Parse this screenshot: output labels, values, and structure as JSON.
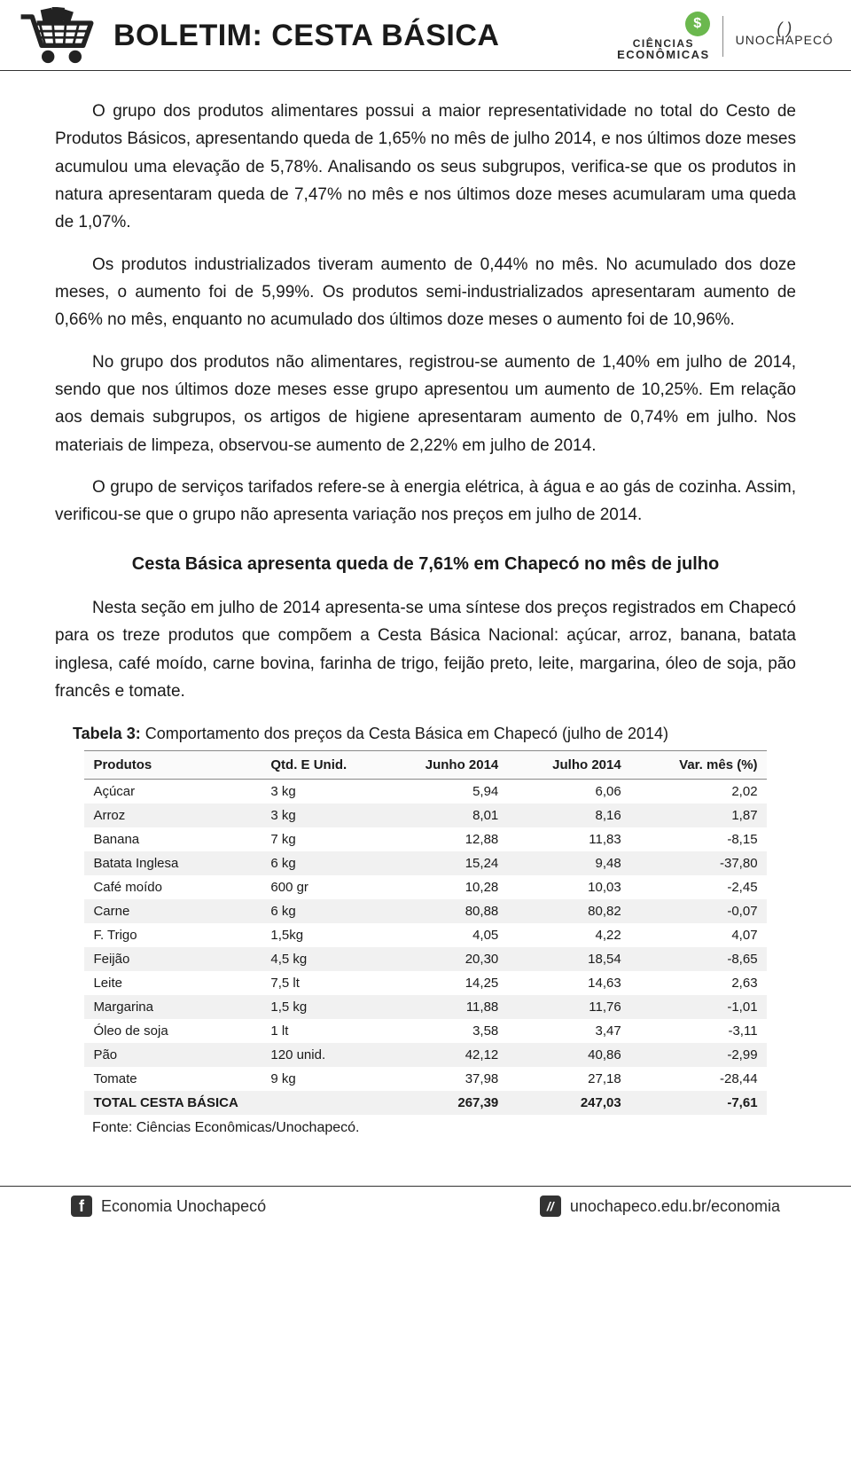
{
  "header": {
    "title": "BOLETIM: CESTA BÁSICA",
    "ciencias_line1": "CIÊNCIAS",
    "ciencias_line2": "ECONÔMICAS",
    "uno_symbol": "( )",
    "uno_text": "UNOCHAPECÓ",
    "coin_symbol": "$"
  },
  "body": {
    "p1": "O grupo dos produtos alimentares possui a maior representatividade no total do Cesto de Produtos Básicos, apresentando queda de 1,65% no mês de julho 2014, e nos últimos doze meses acumulou uma elevação de 5,78%. Analisando os seus subgrupos, verifica-se que os produtos in natura apresentaram queda de 7,47% no mês e nos últimos doze meses acumularam uma queda de 1,07%.",
    "p2": "Os produtos industrializados tiveram aumento de 0,44% no mês. No acumulado dos doze meses, o aumento foi de 5,99%. Os produtos semi-industrializados apresentaram aumento de 0,66% no mês, enquanto no acumulado dos últimos doze meses o aumento foi de 10,96%.",
    "p3": "No grupo dos produtos não alimentares, registrou-se aumento de 1,40% em julho de 2014, sendo que nos últimos doze meses esse grupo apresentou um aumento de 10,25%. Em relação aos demais subgrupos, os artigos de higiene apresentaram aumento de 0,74% em julho. Nos materiais de limpeza, observou-se aumento de 2,22% em julho de 2014.",
    "p4": "O grupo de serviços tarifados refere-se à energia elétrica, à água e ao gás de cozinha. Assim, verificou-se que o grupo não apresenta variação nos preços em julho de 2014.",
    "subheading": "Cesta Básica apresenta queda de 7,61% em Chapecó no mês de julho",
    "p5": "Nesta seção em julho de 2014 apresenta-se uma síntese dos preços registrados em Chapecó para os treze produtos que compõem a Cesta Básica Nacional: açúcar, arroz, banana, batata inglesa, café moído, carne bovina, farinha de trigo, feijão preto, leite, margarina, óleo de soja, pão francês e tomate."
  },
  "table": {
    "title_bold": "Tabela 3:",
    "title_rest": " Comportamento dos preços da Cesta Básica em Chapecó (julho de 2014)",
    "columns": [
      "Produtos",
      "Qtd. E Unid.",
      "Junho 2014",
      "Julho 2014",
      "Var. mês (%)"
    ],
    "col_widths": [
      "26%",
      "18%",
      "18%",
      "18%",
      "20%"
    ],
    "rows": [
      [
        "Açúcar",
        "3 kg",
        "5,94",
        "6,06",
        "2,02"
      ],
      [
        "Arroz",
        "3 kg",
        "8,01",
        "8,16",
        "1,87"
      ],
      [
        "Banana",
        "7 kg",
        "12,88",
        "11,83",
        "-8,15"
      ],
      [
        "Batata Inglesa",
        "6 kg",
        "15,24",
        "9,48",
        "-37,80"
      ],
      [
        "Café moído",
        "600 gr",
        "10,28",
        "10,03",
        "-2,45"
      ],
      [
        "Carne",
        "6 kg",
        "80,88",
        "80,82",
        "-0,07"
      ],
      [
        "F. Trigo",
        "1,5kg",
        "4,05",
        "4,22",
        "4,07"
      ],
      [
        "Feijão",
        "4,5 kg",
        "20,30",
        "18,54",
        "-8,65"
      ],
      [
        "Leite",
        "7,5 lt",
        "14,25",
        "14,63",
        "2,63"
      ],
      [
        "Margarina",
        "1,5 kg",
        "11,88",
        "11,76",
        "-1,01"
      ],
      [
        "Óleo de soja",
        "1 lt",
        "3,58",
        "3,47",
        "-3,11"
      ],
      [
        "Pão",
        "120 unid.",
        "42,12",
        "40,86",
        "-2,99"
      ],
      [
        "Tomate",
        "9 kg",
        "37,98",
        "27,18",
        "-28,44"
      ]
    ],
    "total_row": [
      "TOTAL CESTA BÁSICA",
      "",
      "267,39",
      "247,03",
      "-7,61"
    ],
    "source": "Fonte: Ciências Econômicas/Unochapecó.",
    "row_even_bg": "#f1f1f1",
    "row_odd_bg": "#ffffff",
    "header_bg": "#fafafa",
    "border_color": "#888888",
    "font_size": 15
  },
  "footer": {
    "facebook_label": "Economia Unochapecó",
    "web_label": "unochapeco.edu.br/economia"
  },
  "colors": {
    "text": "#1a1a1a",
    "rule": "#333333",
    "accent_green": "#6bb84e",
    "background": "#ffffff"
  }
}
